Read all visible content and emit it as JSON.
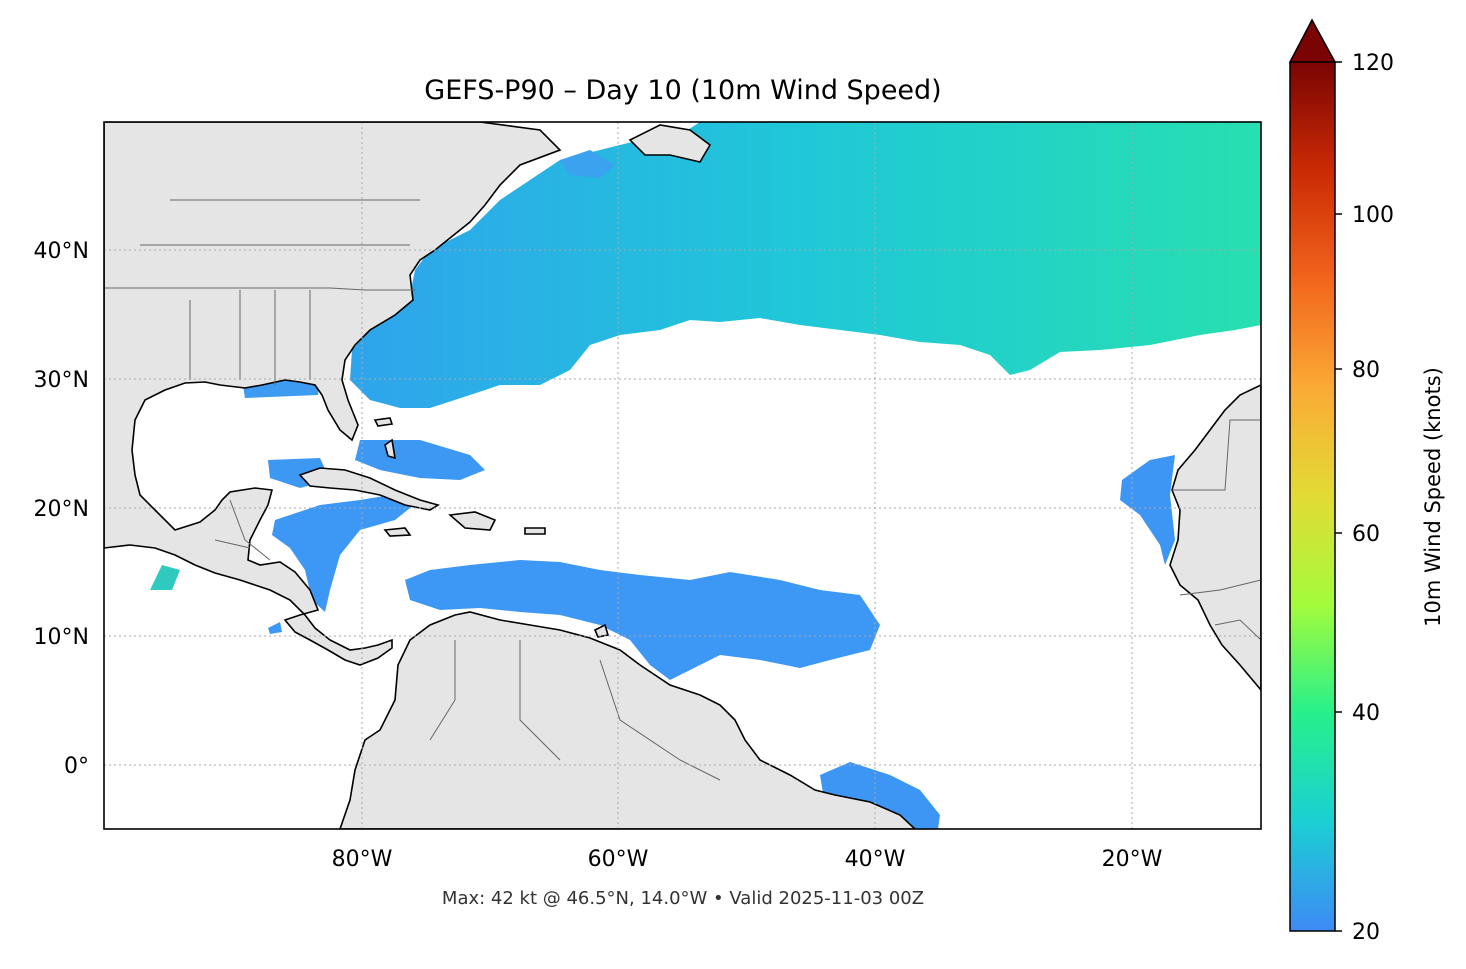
{
  "title": "GEFS-P90 – Day 10 (10m Wind Speed)",
  "footer": "Max: 42 kt @ 46.5°N, 14.0°W • Valid 2025-11-03 00Z",
  "map": {
    "lon_range": [
      -100,
      -10
    ],
    "lat_range": [
      -5,
      50
    ],
    "lon_ticks": [
      {
        "value": -80,
        "label": "80°W"
      },
      {
        "value": -60,
        "label": "60°W"
      },
      {
        "value": -40,
        "label": "40°W"
      },
      {
        "value": -20,
        "label": "20°W"
      }
    ],
    "lat_ticks": [
      {
        "value": 40,
        "label": "40°N"
      },
      {
        "value": 30,
        "label": "30°N"
      },
      {
        "value": 20,
        "label": "20°N"
      },
      {
        "value": 10,
        "label": "10°N"
      },
      {
        "value": 0,
        "label": "0°"
      }
    ],
    "land_color": "#e5e5e5",
    "ocean_color": "#ffffff",
    "gridlines": true
  },
  "colorbar": {
    "label": "10m Wind Speed (knots)",
    "min": 20,
    "max": 120,
    "ticks": [
      {
        "value": 120,
        "label": "120"
      },
      {
        "value": 100,
        "label": "100"
      },
      {
        "value": 80,
        "label": "80"
      },
      {
        "value": 60,
        "label": "60"
      },
      {
        "value": 40,
        "label": "40"
      },
      {
        "value": 20,
        "label": "20"
      }
    ],
    "extend": "max",
    "stops": [
      "#3e8af5",
      "#1bcfd4",
      "#26f08c",
      "#a3fc3c",
      "#e2db35",
      "#fbaa35",
      "#f2651c",
      "#cb2a04",
      "#7a0403"
    ]
  }
}
